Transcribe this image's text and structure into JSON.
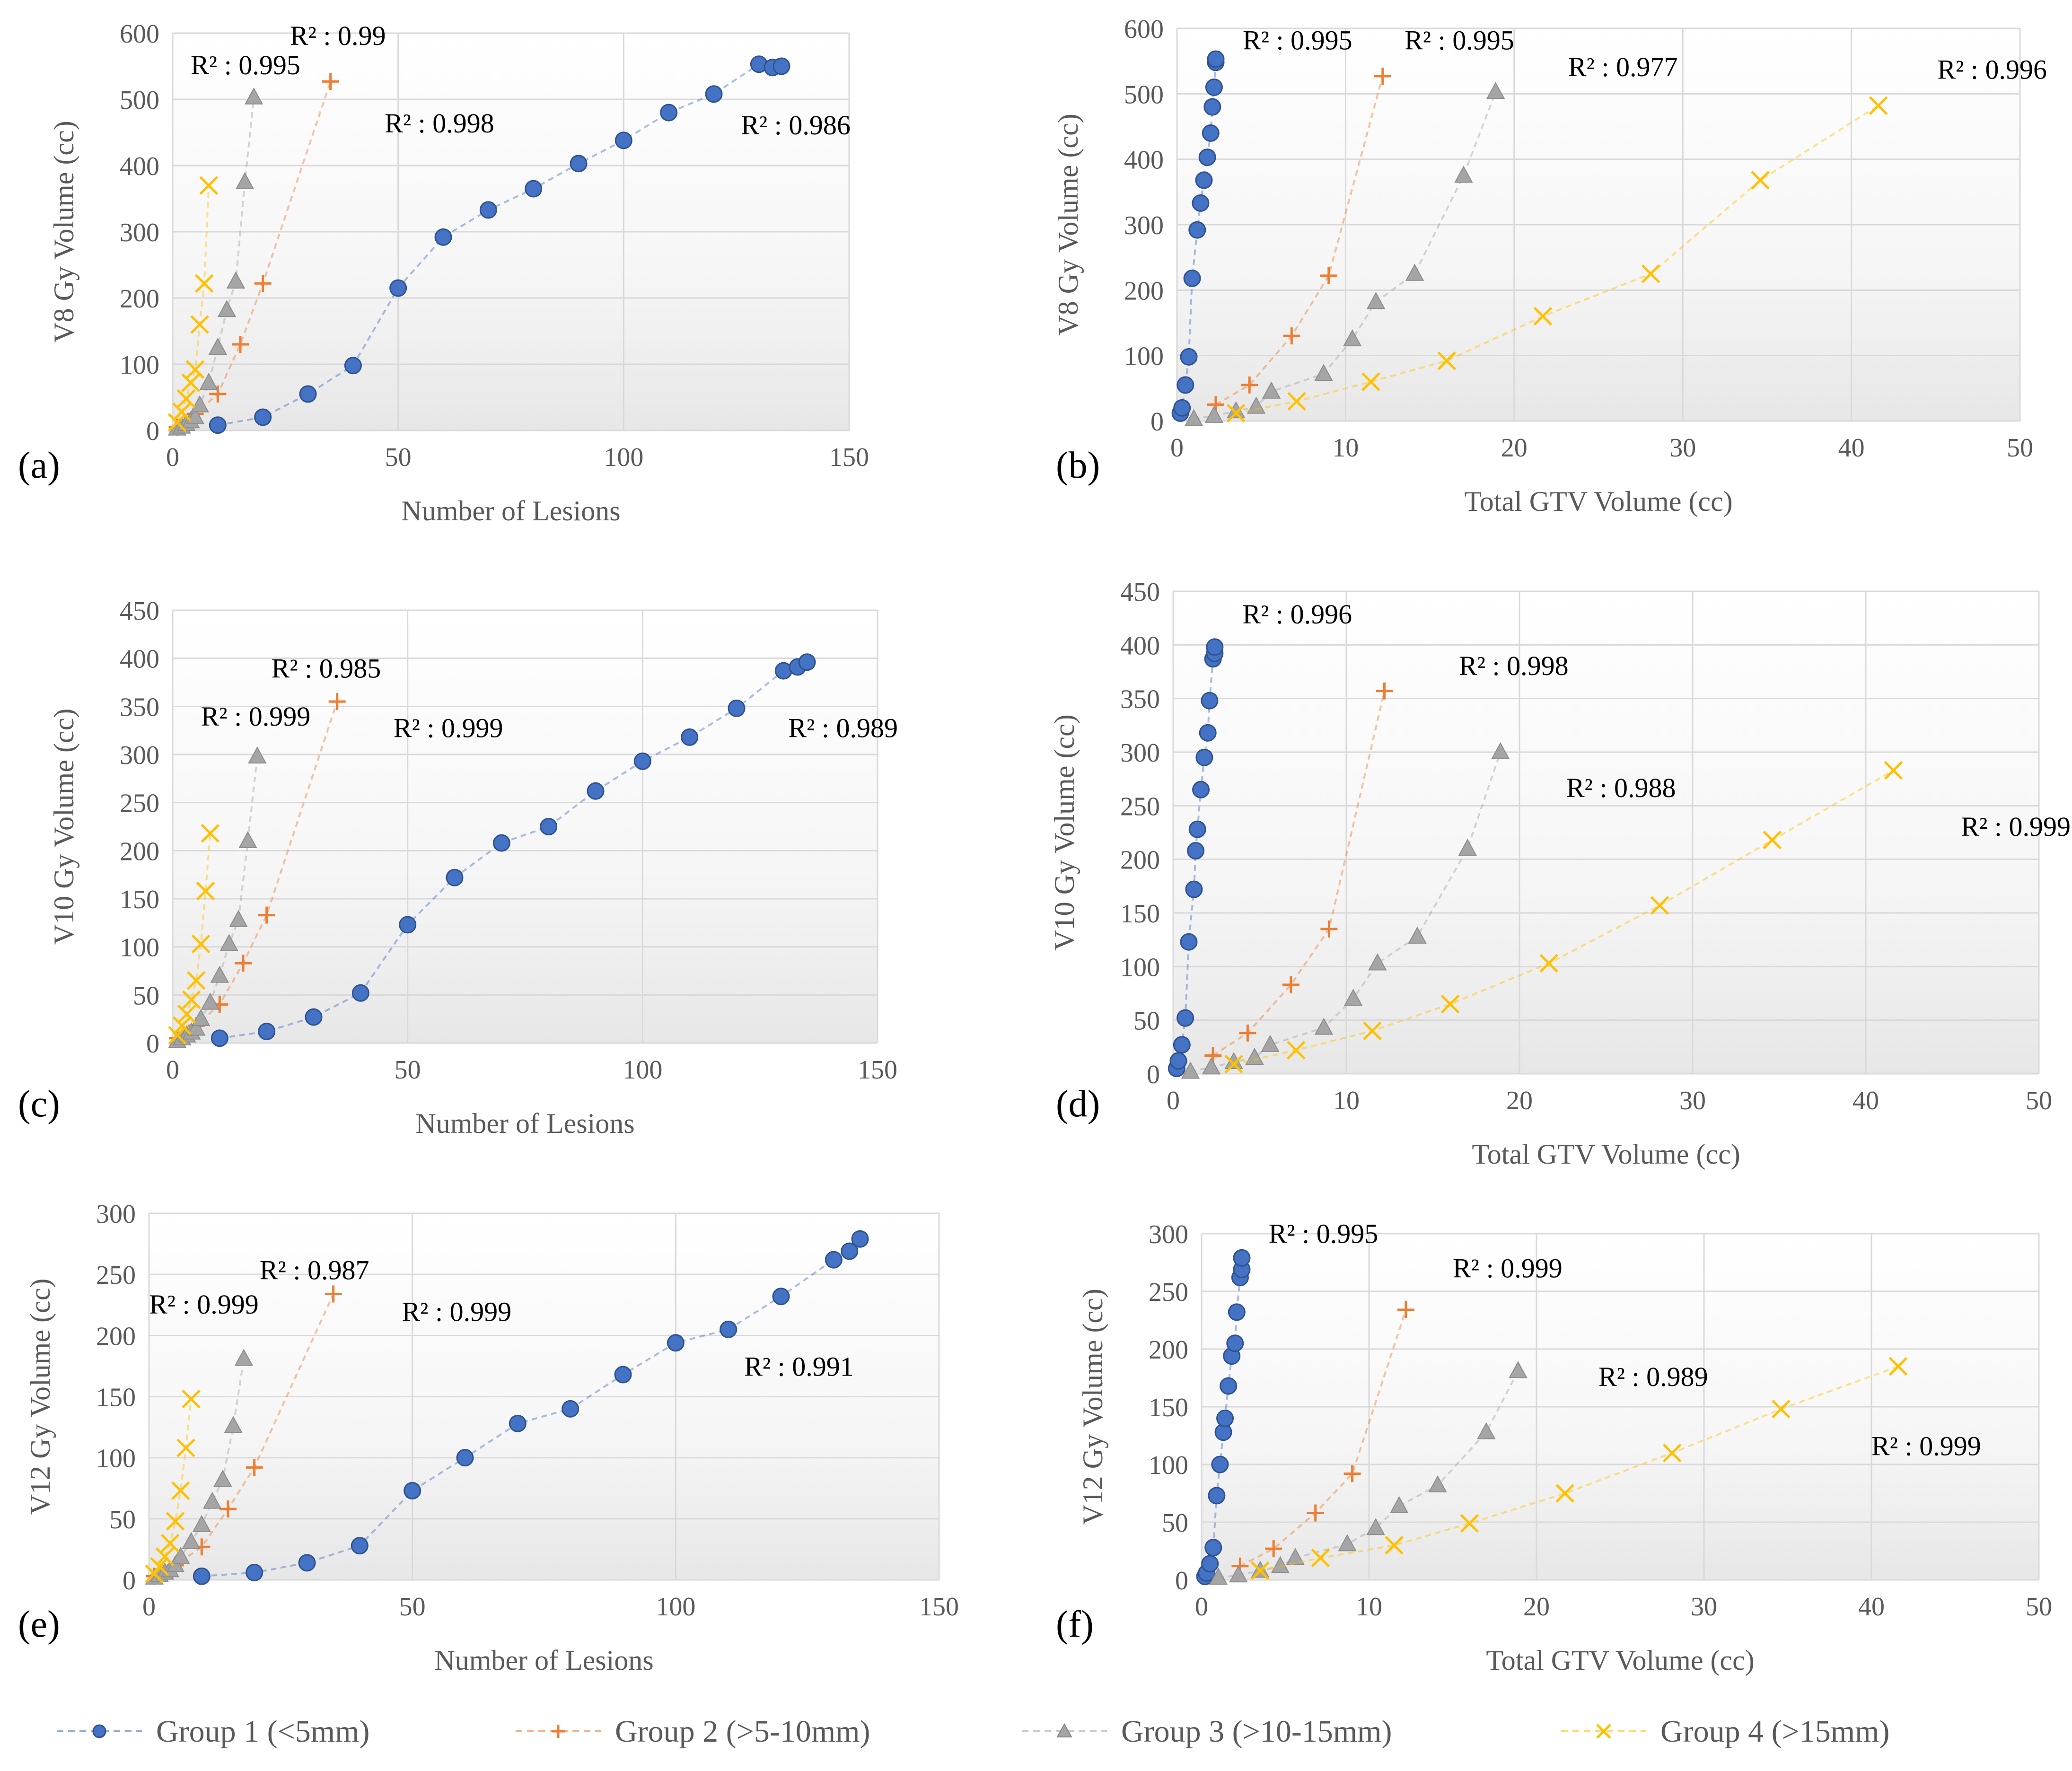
{
  "figure": {
    "legend": [
      {
        "label": "Group 1 (<5mm)",
        "color": "#4472C4",
        "marker": "circle"
      },
      {
        "label": "Group 2 (>5-10mm)",
        "color": "#ED7D31",
        "marker": "plus"
      },
      {
        "label": "Group 3 (>10-15mm)",
        "color": "#A5A5A5",
        "marker": "triangle"
      },
      {
        "label": "Group 4 (>15mm)",
        "color": "#FFC000",
        "marker": "cross"
      }
    ],
    "panel_labels": [
      "(a)",
      "(b)",
      "(c)",
      "(d)",
      "(e)",
      "(f)"
    ]
  },
  "chart_data": [
    {
      "type": "scatter",
      "id": "a",
      "xlabel": "Number of Lesions",
      "ylabel": "V8 Gy Volume (cc)",
      "xlim": [
        0,
        150
      ],
      "ylim": [
        0,
        600
      ],
      "xticks": [
        "0",
        "50",
        "100",
        "150"
      ],
      "yticks": [
        "0",
        "100",
        "200",
        "300",
        "400",
        "500",
        "600"
      ],
      "series": [
        {
          "name": "Group 1 (<5mm)",
          "x": [
            10,
            20,
            30,
            40,
            50,
            60,
            70,
            80,
            90,
            100,
            110,
            120,
            130,
            133,
            135
          ],
          "y": [
            8,
            20,
            55,
            98,
            215,
            292,
            333,
            365,
            403,
            438,
            480,
            508,
            553,
            548,
            550
          ]
        },
        {
          "name": "Group 2 (>5-10mm)",
          "x": [
            1,
            5,
            10,
            15,
            20,
            35
          ],
          "y": [
            5,
            25,
            55,
            130,
            222,
            527
          ]
        },
        {
          "name": "Group 3 (>10-15mm)",
          "x": [
            1,
            2,
            3,
            4,
            5,
            6,
            8,
            10,
            12,
            14,
            16,
            18
          ],
          "y": [
            3,
            6,
            10,
            14,
            20,
            38,
            72,
            125,
            182,
            225,
            375,
            503
          ]
        },
        {
          "name": "Group 4 (>15mm)",
          "x": [
            1,
            2,
            3,
            4,
            5,
            6,
            7,
            8
          ],
          "y": [
            12,
            28,
            48,
            72,
            92,
            160,
            222,
            370
          ]
        }
      ],
      "annotations": [
        {
          "text": "R² : 0.995",
          "x": 4,
          "y": 538
        },
        {
          "text": "R² : 0.99",
          "x": 26,
          "y": 582
        },
        {
          "text": "R² : 0.998",
          "x": 47,
          "y": 450
        },
        {
          "text": "R² : 0.986",
          "x": 126,
          "y": 447
        }
      ]
    },
    {
      "type": "scatter",
      "id": "b",
      "xlabel": "Total GTV Volume (cc)",
      "ylabel": "V8 Gy Volume (cc)",
      "xlim": [
        0,
        50
      ],
      "ylim": [
        0,
        600
      ],
      "xticks": [
        "0",
        "10",
        "20",
        "30",
        "40",
        "50"
      ],
      "yticks": [
        "0",
        "100",
        "200",
        "300",
        "400",
        "500",
        "600"
      ],
      "series": [
        {
          "name": "Group 1 (<5mm)",
          "x": [
            0.2,
            0.3,
            0.5,
            0.7,
            0.9,
            1.2,
            1.4,
            1.6,
            1.8,
            2.0,
            2.1,
            2.2,
            2.3,
            2.3
          ],
          "y": [
            12,
            20,
            55,
            98,
            218,
            292,
            333,
            368,
            403,
            440,
            480,
            510,
            548,
            553
          ]
        },
        {
          "name": "Group 2 (>5-10mm)",
          "x": [
            2.3,
            4.3,
            6.8,
            9.0,
            12.2
          ],
          "y": [
            25,
            55,
            130,
            222,
            527
          ]
        },
        {
          "name": "Group 3 (>10-15mm)",
          "x": [
            1.0,
            2.2,
            3.5,
            4.7,
            5.6,
            8.7,
            10.4,
            11.8,
            14.1,
            17.0,
            18.9
          ],
          "y": [
            3,
            8,
            15,
            22,
            45,
            72,
            125,
            182,
            225,
            375,
            503
          ]
        },
        {
          "name": "Group 4 (>15mm)",
          "x": [
            3.5,
            7.1,
            11.5,
            16.0,
            21.7,
            28.1,
            34.6,
            41.6
          ],
          "y": [
            12,
            30,
            60,
            92,
            160,
            225,
            368,
            482
          ]
        }
      ],
      "annotations": [
        {
          "text": "R² : 0.995",
          "x": 3.9,
          "y": 568
        },
        {
          "text": "R² : 0.995",
          "x": 13.5,
          "y": 568
        },
        {
          "text": "R² : 0.977",
          "x": 23.2,
          "y": 527
        },
        {
          "text": "R² : 0.996",
          "x": 45.1,
          "y": 523
        }
      ]
    },
    {
      "type": "scatter",
      "id": "c",
      "xlabel": "Number of Lesions",
      "ylabel": "V10 Gy Volume (cc)",
      "xlim": [
        0,
        150
      ],
      "ylim": [
        0,
        450
      ],
      "xticks": [
        "0",
        "50",
        "100",
        "150"
      ],
      "yticks": [
        "0",
        "50",
        "100",
        "150",
        "200",
        "250",
        "300",
        "350",
        "400",
        "450"
      ],
      "series": [
        {
          "name": "Group 1 (<5mm)",
          "x": [
            10,
            20,
            30,
            40,
            50,
            60,
            70,
            80,
            90,
            100,
            110,
            120,
            130,
            133,
            135
          ],
          "y": [
            5,
            12,
            27,
            52,
            123,
            172,
            208,
            225,
            262,
            293,
            318,
            348,
            387,
            391,
            396
          ]
        },
        {
          "name": "Group 2 (>5-10mm)",
          "x": [
            1,
            5,
            10,
            15,
            20,
            35
          ],
          "y": [
            5,
            18,
            40,
            83,
            133,
            355
          ]
        },
        {
          "name": "Group 3 (>10-15mm)",
          "x": [
            1,
            2,
            3,
            4,
            5,
            6,
            8,
            10,
            12,
            14,
            16,
            18
          ],
          "y": [
            2,
            5,
            8,
            11,
            15,
            25,
            42,
            70,
            103,
            128,
            210,
            298
          ]
        },
        {
          "name": "Group 4 (>15mm)",
          "x": [
            1,
            2,
            3,
            4,
            5,
            6,
            7,
            8
          ],
          "y": [
            8,
            18,
            30,
            45,
            65,
            103,
            158,
            218
          ]
        }
      ],
      "annotations": [
        {
          "text": "R² : 0.999",
          "x": 6,
          "y": 330
        },
        {
          "text": "R² : 0.985",
          "x": 21,
          "y": 380
        },
        {
          "text": "R² : 0.999",
          "x": 47,
          "y": 318
        },
        {
          "text": "R² : 0.989",
          "x": 131,
          "y": 318
        }
      ]
    },
    {
      "type": "scatter",
      "id": "d",
      "xlabel": "Total GTV Volume (cc)",
      "ylabel": "V10 Gy Volume (cc)",
      "xlim": [
        0,
        50
      ],
      "ylim": [
        0,
        450
      ],
      "xticks": [
        "0",
        "10",
        "20",
        "30",
        "40",
        "50"
      ],
      "yticks": [
        "0",
        "50",
        "100",
        "150",
        "200",
        "250",
        "300",
        "350",
        "400",
        "450"
      ],
      "series": [
        {
          "name": "Group 1 (<5mm)",
          "x": [
            0.2,
            0.3,
            0.5,
            0.7,
            0.9,
            1.2,
            1.3,
            1.4,
            1.6,
            1.8,
            2.0,
            2.1,
            2.3,
            2.4,
            2.4
          ],
          "y": [
            5,
            12,
            27,
            52,
            123,
            172,
            208,
            228,
            265,
            295,
            318,
            348,
            387,
            392,
            398
          ]
        },
        {
          "name": "Group 2 (>5-10mm)",
          "x": [
            2.3,
            4.3,
            6.8,
            9.0,
            12.2
          ],
          "y": [
            17,
            38,
            83,
            135,
            357
          ]
        },
        {
          "name": "Group 3 (>10-15mm)",
          "x": [
            1.0,
            2.2,
            3.5,
            4.7,
            5.6,
            8.7,
            10.4,
            11.8,
            14.1,
            17.0,
            18.9
          ],
          "y": [
            2,
            6,
            11,
            15,
            27,
            43,
            70,
            103,
            128,
            210,
            300
          ]
        },
        {
          "name": "Group 4 (>15mm)",
          "x": [
            3.5,
            7.1,
            11.5,
            16.0,
            21.7,
            28.1,
            34.6,
            41.6
          ],
          "y": [
            9,
            22,
            40,
            65,
            103,
            157,
            218,
            283
          ]
        }
      ],
      "annotations": [
        {
          "text": "R² : 0.996",
          "x": 4.0,
          "y": 420
        },
        {
          "text": "R² : 0.998",
          "x": 16.5,
          "y": 372
        },
        {
          "text": "R² : 0.988",
          "x": 22.7,
          "y": 258
        },
        {
          "text": "R² : 0.999",
          "x": 45.5,
          "y": 222
        }
      ]
    },
    {
      "type": "scatter",
      "id": "e",
      "xlabel": "Number of Lesions",
      "ylabel": "V12 Gy Volume (cc)",
      "xlim": [
        0,
        150
      ],
      "ylim": [
        0,
        300
      ],
      "xticks": [
        "0",
        "50",
        "100",
        "150"
      ],
      "yticks": [
        "0",
        "50",
        "100",
        "150",
        "200",
        "250",
        "300"
      ],
      "series": [
        {
          "name": "Group 1 (<5mm)",
          "x": [
            10,
            20,
            30,
            40,
            50,
            60,
            70,
            80,
            90,
            100,
            110,
            120,
            130,
            133,
            135
          ],
          "y": [
            3,
            6,
            14,
            28,
            73,
            100,
            128,
            140,
            168,
            194,
            205,
            232,
            262,
            269,
            279
          ]
        },
        {
          "name": "Group 2 (>5-10mm)",
          "x": [
            1,
            5,
            10,
            15,
            20,
            35
          ],
          "y": [
            3,
            12,
            27,
            58,
            92,
            234
          ]
        },
        {
          "name": "Group 3 (>10-15mm)",
          "x": [
            1,
            2,
            3,
            4,
            5,
            6,
            8,
            10,
            12,
            14,
            16,
            18
          ],
          "y": [
            2,
            4,
            6,
            8,
            12,
            19,
            31,
            45,
            64,
            82,
            126,
            181
          ]
        },
        {
          "name": "Group 4 (>15mm)",
          "x": [
            1,
            2,
            3,
            4,
            5,
            6,
            7,
            8
          ],
          "y": [
            5,
            11,
            19,
            30,
            48,
            73,
            108,
            148
          ]
        }
      ],
      "annotations": [
        {
          "text": "R² : 0.999",
          "x": 0,
          "y": 218
        },
        {
          "text": "R² : 0.987",
          "x": 21,
          "y": 246
        },
        {
          "text": "R² : 0.999",
          "x": 48,
          "y": 212
        },
        {
          "text": "R² : 0.991",
          "x": 113,
          "y": 167
        }
      ]
    },
    {
      "type": "scatter",
      "id": "f",
      "xlabel": "Total GTV Volume (cc)",
      "ylabel": "V12 Gy Volume (cc)",
      "xlim": [
        0,
        50
      ],
      "ylim": [
        0,
        300
      ],
      "xticks": [
        "0",
        "10",
        "20",
        "30",
        "40",
        "50"
      ],
      "yticks": [
        "0",
        "50",
        "100",
        "150",
        "200",
        "250",
        "300"
      ],
      "series": [
        {
          "name": "Group 1 (<5mm)",
          "x": [
            0.2,
            0.3,
            0.5,
            0.7,
            0.9,
            1.1,
            1.3,
            1.4,
            1.6,
            1.8,
            2.0,
            2.1,
            2.3,
            2.4,
            2.4
          ],
          "y": [
            3,
            6,
            14,
            28,
            73,
            100,
            128,
            140,
            168,
            194,
            205,
            232,
            262,
            269,
            279
          ]
        },
        {
          "name": "Group 2 (>5-10mm)",
          "x": [
            2.3,
            4.3,
            6.8,
            9.0,
            12.2
          ],
          "y": [
            12,
            27,
            58,
            92,
            234
          ]
        },
        {
          "name": "Group 3 (>10-15mm)",
          "x": [
            1.0,
            2.2,
            3.5,
            4.7,
            5.6,
            8.7,
            10.4,
            11.8,
            14.1,
            17.0,
            18.9
          ],
          "y": [
            2,
            4,
            8,
            12,
            19,
            31,
            45,
            64,
            82,
            128,
            181
          ]
        },
        {
          "name": "Group 4 (>15mm)",
          "x": [
            3.5,
            7.1,
            11.5,
            16.0,
            21.7,
            28.1,
            34.6,
            41.6
          ],
          "y": [
            8,
            19,
            30,
            49,
            75,
            110,
            148,
            185
          ]
        }
      ],
      "annotations": [
        {
          "text": "R² : 0.995",
          "x": 4.0,
          "y": 292
        },
        {
          "text": "R² : 0.999",
          "x": 15.0,
          "y": 262
        },
        {
          "text": "R² : 0.989",
          "x": 23.7,
          "y": 168
        },
        {
          "text": "R² : 0.999",
          "x": 40.0,
          "y": 108
        }
      ]
    }
  ]
}
